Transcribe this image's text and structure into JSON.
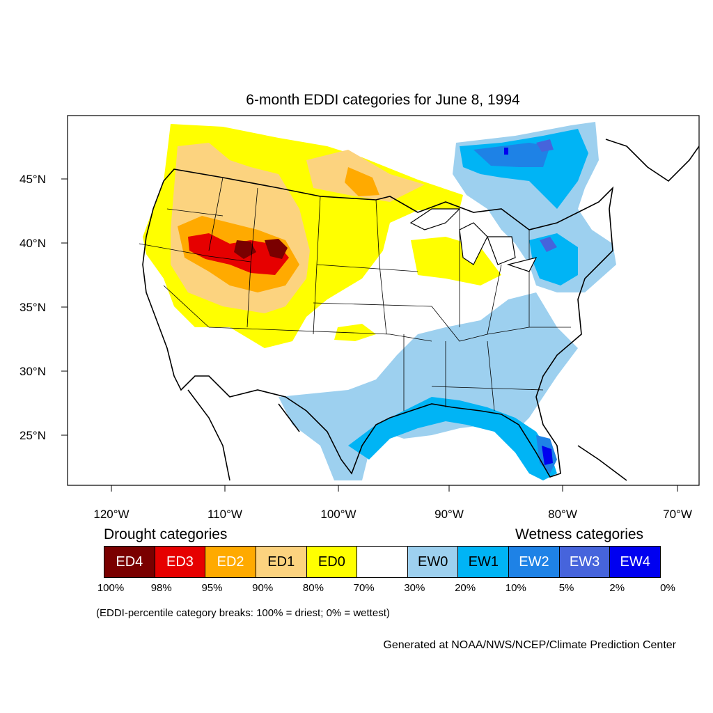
{
  "title": "6-month EDDI categories for June 8, 1994",
  "lat_labels": [
    "45°N",
    "40°N",
    "35°N",
    "30°N",
    "25°N"
  ],
  "lon_labels": [
    "120°W",
    "110°W",
    "100°W",
    "90°W",
    "80°W",
    "70°W"
  ],
  "legend": {
    "drought_title": "Drought categories",
    "wetness_title": "Wetness categories",
    "categories": [
      {
        "label": "ED4",
        "color": "#7a0000",
        "text_color": "#ffffff"
      },
      {
        "label": "ED3",
        "color": "#e60000",
        "text_color": "#ffffff"
      },
      {
        "label": "ED2",
        "color": "#ffaa00",
        "text_color": "#ffffff"
      },
      {
        "label": "ED1",
        "color": "#fcd37f",
        "text_color": "#000000"
      },
      {
        "label": "ED0",
        "color": "#ffff00",
        "text_color": "#000000"
      },
      {
        "label": "",
        "color": "#ffffff",
        "text_color": "#000000"
      },
      {
        "label": "EW0",
        "color": "#9dd0ef",
        "text_color": "#000000"
      },
      {
        "label": "EW1",
        "color": "#00b4f5",
        "text_color": "#000000"
      },
      {
        "label": "EW2",
        "color": "#1e82e6",
        "text_color": "#ffffff"
      },
      {
        "label": "EW3",
        "color": "#4664dc",
        "text_color": "#ffffff"
      },
      {
        "label": "EW4",
        "color": "#0000f0",
        "text_color": "#ffffff"
      }
    ],
    "breaks": [
      "100%",
      "98%",
      "95%",
      "90%",
      "80%",
      "70%",
      "30%",
      "20%",
      "10%",
      "5%",
      "2%",
      "0%"
    ]
  },
  "note": "(EDDI-percentile category breaks: 100% = driest; 0% = wettest)",
  "credit": "Generated at NOAA/NWS/NCEP/Climate Prediction Center"
}
